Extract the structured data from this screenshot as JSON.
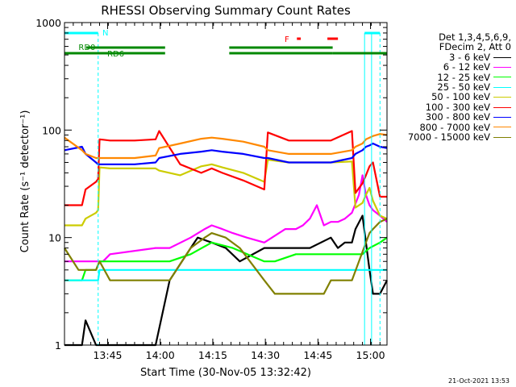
{
  "chart_data": {
    "type": "line",
    "title": "RHESSI Observing Summary Count Rates",
    "xlabel": "Start Time (30-Nov-05 13:32:42)",
    "ylabel": "Count Rate (s⁻¹ detector⁻¹)",
    "y_scale": "log",
    "ylim": [
      1,
      1000
    ],
    "x_minutes": [
      0,
      92
    ],
    "x_ticks": [
      {
        "minute": 12.3,
        "label": "13:45"
      },
      {
        "minute": 27.3,
        "label": "14:00"
      },
      {
        "minute": 42.3,
        "label": "14:15"
      },
      {
        "minute": 57.3,
        "label": "14:30"
      },
      {
        "minute": 72.3,
        "label": "14:45"
      },
      {
        "minute": 87.3,
        "label": "15:00"
      }
    ],
    "y_ticks": [
      {
        "value": 1,
        "label": "1"
      },
      {
        "value": 10,
        "label": "10"
      },
      {
        "value": 100,
        "label": "100"
      },
      {
        "value": 1000,
        "label": "1000"
      }
    ],
    "legend_header": [
      "Det 1,3,4,5,6,9,",
      "FDecim 2, Att 0"
    ],
    "series": [
      {
        "name": "3 - 6 keV",
        "color": "#000000",
        "x": [
          0,
          5,
          6,
          9,
          11,
          13,
          26,
          30,
          36,
          38,
          42,
          46,
          50,
          57,
          60,
          66,
          70,
          76,
          78,
          80,
          82,
          83,
          85,
          87,
          88,
          90,
          92
        ],
        "y": [
          1,
          1,
          1.7,
          1,
          1,
          1,
          1,
          4,
          8,
          10,
          9,
          8,
          6,
          8,
          8,
          8,
          8,
          10,
          8,
          9,
          9,
          12,
          16,
          5,
          3,
          3,
          4
        ]
      },
      {
        "name": "6 - 12 keV",
        "color": "#ff00ff",
        "x": [
          0,
          5,
          6,
          9,
          10,
          11,
          13,
          26,
          30,
          36,
          40,
          42,
          45,
          48,
          52,
          57,
          63,
          66,
          68,
          70,
          72,
          74,
          76,
          78,
          80,
          82,
          84,
          85,
          86,
          87,
          88,
          90,
          92
        ],
        "y": [
          6,
          6,
          6,
          6,
          6,
          6,
          7,
          8,
          8,
          10,
          12,
          13,
          12,
          11,
          10,
          9,
          12,
          12,
          13,
          15,
          20,
          13,
          14,
          14,
          15,
          17,
          25,
          38,
          25,
          20,
          18,
          16,
          14
        ]
      },
      {
        "name": "12 - 25 keV",
        "color": "#00ff00",
        "x": [
          0,
          5,
          6,
          9,
          10,
          13,
          26,
          30,
          36,
          42,
          48,
          57,
          60,
          66,
          70,
          76,
          80,
          82,
          85,
          87,
          90,
          92
        ],
        "y": [
          4,
          4,
          5,
          5,
          6,
          6,
          6,
          6,
          7,
          9,
          8,
          6,
          6,
          7,
          7,
          7,
          7,
          7,
          7,
          8,
          9,
          10
        ]
      },
      {
        "name": "25 - 50 keV",
        "color": "#00ffff",
        "x": [
          0,
          5,
          6,
          9,
          9.6,
          10,
          13,
          20,
          26,
          27,
          33,
          39,
          42,
          45,
          51,
          57,
          58,
          64,
          70,
          76,
          82,
          83,
          85,
          86,
          87,
          88,
          90,
          92
        ],
        "y": [
          4,
          4,
          4,
          4,
          4,
          5,
          5,
          5,
          5,
          5,
          5,
          5,
          5,
          5,
          5,
          5,
          5,
          5,
          5,
          5,
          5,
          5,
          5,
          5,
          5,
          5,
          5,
          5
        ]
      },
      {
        "name": "50 - 100 keV",
        "color": "#cccc00",
        "x": [
          0,
          5,
          6,
          9,
          9.6,
          10,
          13,
          20,
          26,
          27,
          33,
          39,
          42,
          45,
          51,
          57,
          58,
          64,
          70,
          76,
          82,
          83,
          85,
          86,
          87,
          88,
          90,
          92
        ],
        "y": [
          13,
          13,
          15,
          17,
          18,
          45,
          44,
          44,
          44,
          42,
          38,
          46,
          48,
          45,
          40,
          33,
          53,
          50,
          50,
          50,
          51,
          19,
          21,
          25,
          29,
          22,
          16,
          15
        ]
      },
      {
        "name": "100 - 300 keV",
        "color": "#ff0000",
        "x": [
          0,
          5,
          6,
          9,
          9.6,
          10,
          13,
          20,
          26,
          27,
          33,
          39,
          42,
          45,
          51,
          57,
          58,
          64,
          70,
          76,
          82,
          83,
          85,
          86,
          87,
          88,
          90,
          92
        ],
        "y": [
          20,
          20,
          28,
          33,
          35,
          82,
          80,
          80,
          82,
          98,
          48,
          40,
          44,
          40,
          34,
          28,
          95,
          80,
          80,
          80,
          98,
          26,
          32,
          38,
          46,
          50,
          24,
          24
        ]
      },
      {
        "name": "300 - 800 keV",
        "color": "#0000ff",
        "x": [
          0,
          5,
          6,
          9,
          9.6,
          10,
          13,
          20,
          26,
          27,
          33,
          39,
          42,
          45,
          51,
          57,
          58,
          64,
          70,
          76,
          82,
          83,
          85,
          86,
          87,
          88,
          90,
          92
        ],
        "y": [
          65,
          70,
          60,
          50,
          48,
          48,
          48,
          48,
          50,
          55,
          60,
          63,
          65,
          63,
          60,
          55,
          55,
          50,
          50,
          50,
          55,
          60,
          65,
          70,
          72,
          75,
          70,
          68
        ]
      },
      {
        "name": "800 - 7000 keV",
        "color": "#ff8800",
        "x": [
          0,
          5,
          6,
          9,
          9.6,
          10,
          13,
          20,
          26,
          27,
          33,
          39,
          42,
          45,
          51,
          57,
          58,
          64,
          70,
          76,
          82,
          83,
          85,
          86,
          87,
          88,
          90,
          92
        ],
        "y": [
          85,
          65,
          60,
          55,
          55,
          55,
          55,
          55,
          58,
          68,
          75,
          83,
          85,
          83,
          78,
          70,
          65,
          60,
          60,
          60,
          65,
          70,
          75,
          82,
          85,
          88,
          92,
          90
        ]
      },
      {
        "name": "7000 - 15000 keV",
        "color": "#808000",
        "x": [
          0,
          4,
          6,
          9,
          10,
          13,
          26,
          30,
          36,
          40,
          42,
          46,
          50,
          57,
          60,
          66,
          70,
          74,
          76,
          78,
          80,
          82,
          84,
          86,
          87,
          88,
          90,
          92
        ],
        "y": [
          8,
          5,
          5,
          5,
          6,
          4,
          4,
          4,
          8,
          10,
          11,
          10,
          8,
          4,
          3,
          3,
          3,
          3,
          4,
          4,
          4,
          4,
          6,
          9,
          11,
          12,
          14,
          15
        ]
      }
    ],
    "annotations": [
      {
        "label": "N",
        "color": "#00ffff"
      },
      {
        "label": "RD0",
        "color": "#008800"
      },
      {
        "label": "RD6",
        "color": "#008800"
      },
      {
        "label": "F",
        "color": "#ff0000"
      }
    ],
    "grid": false,
    "legend_position": "right"
  },
  "footer": {
    "timestamp": "21-Oct-2021 13:53"
  }
}
